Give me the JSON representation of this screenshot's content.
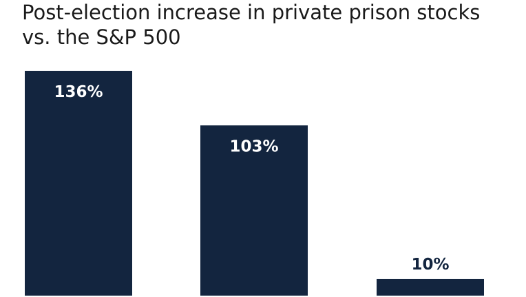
{
  "colors": {
    "bar": "#13253f",
    "label_on_bar": "#ffffff",
    "label_above_bar": "#13253f",
    "title": "#1a1a1a"
  },
  "chart_data": {
    "type": "bar",
    "title_lines": [
      "Post-election increase in private prison stocks",
      "vs. the S&P 500"
    ],
    "categories": [
      "",
      "",
      ""
    ],
    "values": [
      136,
      103,
      10
    ],
    "value_labels": [
      "136%",
      "103%",
      "10%"
    ],
    "ylim": [
      0,
      136
    ],
    "grid": false,
    "legend": "none"
  }
}
